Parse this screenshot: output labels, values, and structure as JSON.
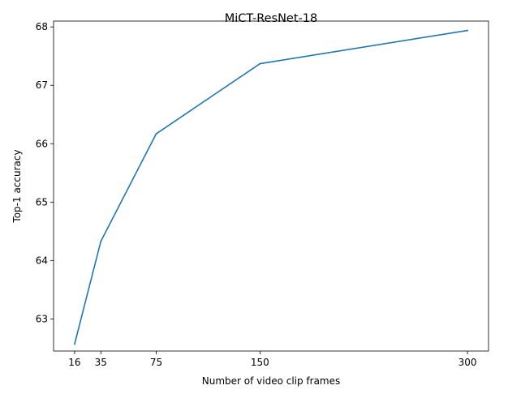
{
  "chart_data": {
    "type": "line",
    "title": "MiCT-ResNet-18",
    "xlabel": "Number of video clip frames",
    "ylabel": "Top-1 accuracy",
    "x": [
      16,
      35,
      75,
      150,
      300
    ],
    "xticks": [
      16,
      35,
      75,
      150,
      300
    ],
    "yticks": [
      63,
      64,
      65,
      66,
      67,
      68
    ],
    "xlim": [
      0.8,
      315.2
    ],
    "ylim": [
      62.45,
      68.1
    ],
    "grid": false,
    "series": [
      {
        "values": [
          62.57,
          64.33,
          66.17,
          67.37,
          67.94
        ],
        "color": "#1f77b4"
      }
    ]
  }
}
